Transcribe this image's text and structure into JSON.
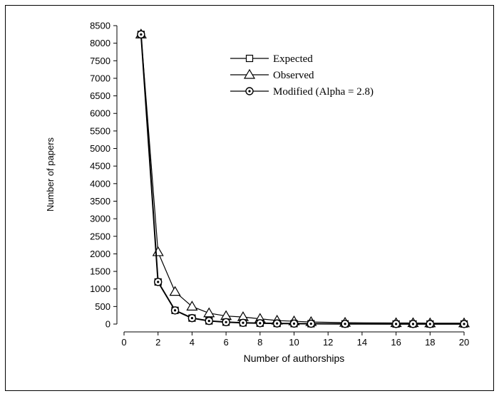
{
  "chart_data": {
    "type": "line",
    "title": "",
    "xlabel": "Number of authorships",
    "ylabel": "Number of papers",
    "xlim": [
      0,
      20
    ],
    "ylim": [
      0,
      8500
    ],
    "x_ticks": [
      0,
      2,
      4,
      6,
      8,
      10,
      12,
      14,
      16,
      18,
      20
    ],
    "y_ticks": [
      0,
      500,
      1000,
      1500,
      2000,
      2500,
      3000,
      3500,
      4000,
      4500,
      5000,
      5500,
      6000,
      6500,
      7000,
      7500,
      8000,
      8500
    ],
    "grid": false,
    "legend_position": "top-right",
    "x": [
      1,
      2,
      3,
      4,
      5,
      6,
      7,
      8,
      9,
      10,
      11,
      13,
      16,
      17,
      18,
      20
    ],
    "series": [
      {
        "name": "Expected",
        "marker": "square",
        "values": [
          8250,
          1200,
          390,
          170,
          90,
          55,
          35,
          25,
          18,
          13,
          10,
          6,
          3,
          3,
          2,
          2
        ]
      },
      {
        "name": "Observed",
        "marker": "triangle",
        "values": [
          8250,
          2050,
          920,
          500,
          310,
          230,
          200,
          150,
          100,
          80,
          60,
          40,
          30,
          30,
          25,
          25
        ]
      },
      {
        "name": "Modified (Alpha = 2.8)",
        "marker": "circle-dot",
        "values": [
          8250,
          1200,
          390,
          170,
          90,
          55,
          35,
          25,
          18,
          13,
          10,
          6,
          3,
          3,
          2,
          2
        ]
      }
    ]
  }
}
